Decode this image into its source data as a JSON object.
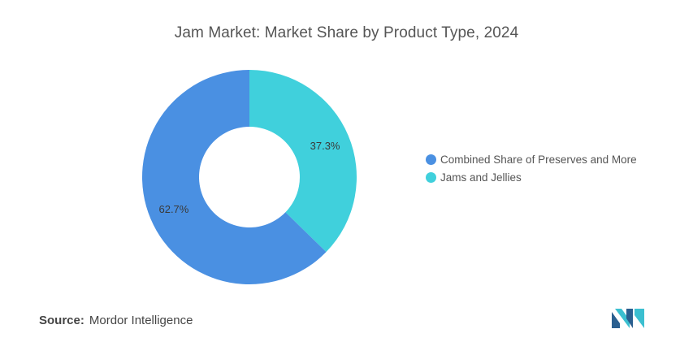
{
  "chart_data": {
    "type": "pie",
    "title": "Jam Market: Market Share by Product Type, 2024",
    "donut": true,
    "slices": [
      {
        "name": "Jams and Jellies",
        "value": 37.3,
        "label": "37.3%",
        "color": "#40d0dc"
      },
      {
        "name": "Combined Share of Preserves and More",
        "value": 62.7,
        "label": "62.7%",
        "color": "#4a90e2"
      }
    ],
    "legend": {
      "placement": "right",
      "entries": [
        {
          "name": "Combined Share of Preserves and More",
          "color": "#4a90e2"
        },
        {
          "name": "Jams and Jellies",
          "color": "#40d0dc"
        }
      ]
    }
  },
  "source": {
    "label": "Source:",
    "text": "Mordor Intelligence"
  },
  "logo": {
    "icon": "mordor-intelligence-logo-icon",
    "colors": [
      "#2a5f8f",
      "#3bbfd0"
    ]
  }
}
